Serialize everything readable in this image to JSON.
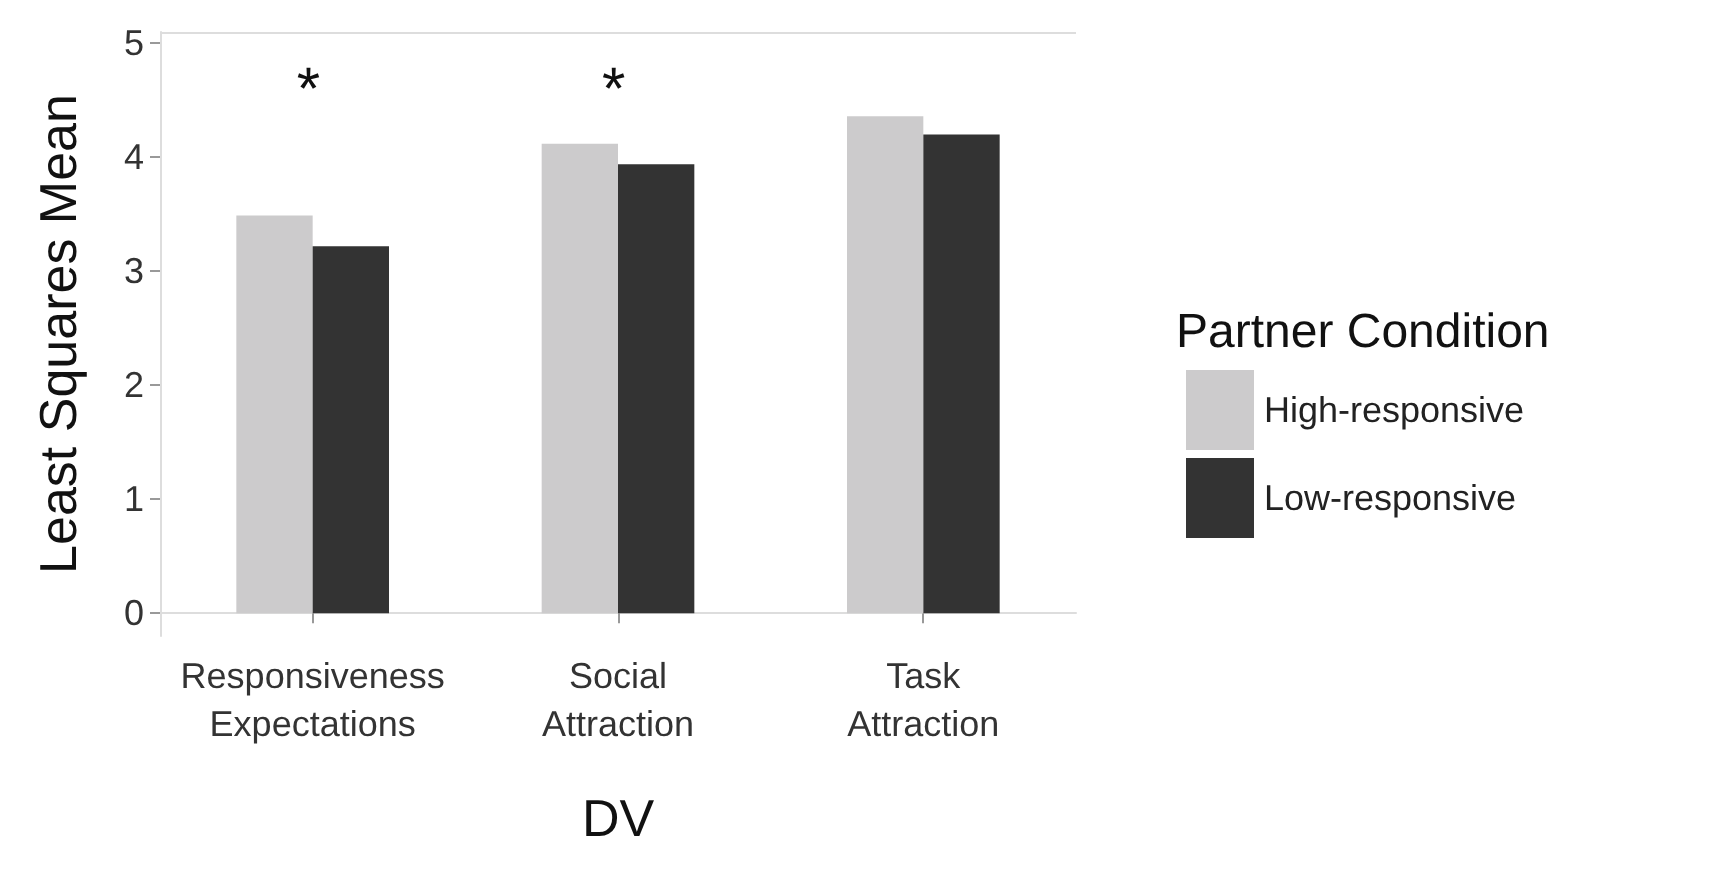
{
  "chart_data": {
    "type": "bar",
    "xlabel": "DV",
    "ylabel": "Least Squares Mean",
    "legend_title": "Partner Condition",
    "categories": [
      "Responsiveness\nExpectations",
      "Social\nAttraction",
      "Task\nAttraction"
    ],
    "series": [
      {
        "name": "High-responsive",
        "color": "#cccbcc",
        "values": [
          3.49,
          4.12,
          4.36
        ]
      },
      {
        "name": "Low-responsive",
        "color": "#333333",
        "values": [
          3.22,
          3.94,
          4.2
        ]
      }
    ],
    "ylim": [
      -0.2,
      5.1
    ],
    "yticks": [
      0,
      1,
      2,
      3,
      4,
      5
    ],
    "grid": false,
    "legend": "right",
    "annotations": [
      "*",
      "*"
    ]
  }
}
